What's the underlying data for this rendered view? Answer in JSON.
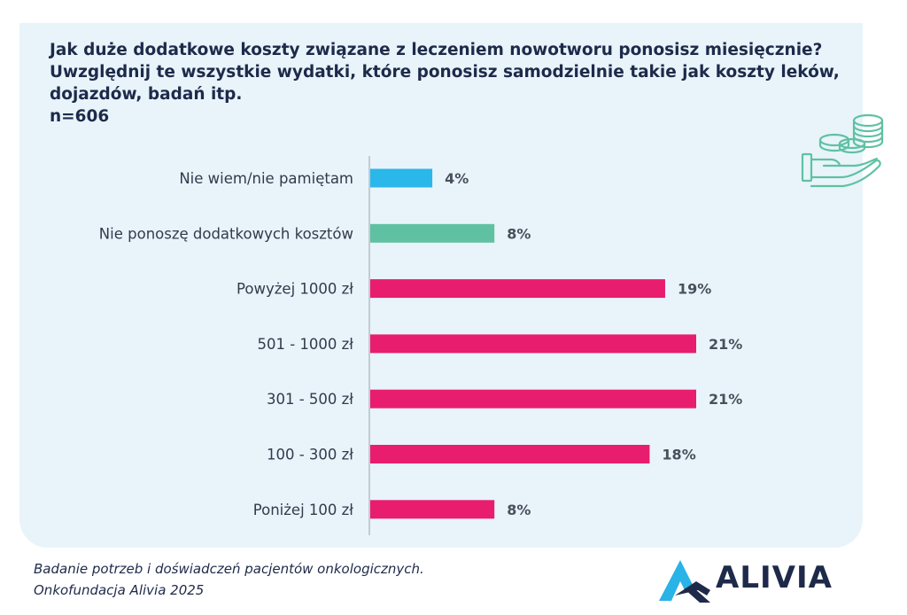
{
  "header": {
    "question_line1": "Jak duże dodatkowe koszty związane z leczeniem nowotworu ponosisz miesięcznie?",
    "question_line2": "Uwzględnij te wszystkie wydatki, które ponosisz samodzielnie takie jak koszty leków,",
    "question_line3": "dojazdów, badań itp.",
    "sample_size": "n=606"
  },
  "chart_data": {
    "type": "bar",
    "orientation": "horizontal",
    "categories": [
      "Nie wiem/nie pamiętam",
      "Nie ponoszę dodatkowych kosztów",
      "Powyżej 1000 zł",
      "501 - 1000 zł",
      "301 - 500 zł",
      "100 - 300 zł",
      "Poniżej 100 zł"
    ],
    "values": [
      4,
      8,
      19,
      21,
      21,
      18,
      8
    ],
    "value_labels": [
      "4%",
      "8%",
      "19%",
      "21%",
      "21%",
      "18%",
      "8%"
    ],
    "unit": "%",
    "bar_colors": [
      "#2ab7ea",
      "#5fc1a2",
      "#e81d6e",
      "#e81d6e",
      "#e81d6e",
      "#e81d6e",
      "#e81d6e"
    ],
    "xlim": [
      0,
      21
    ],
    "grid": false,
    "legend": "none"
  },
  "icons": {
    "money": "hand-with-coins-icon",
    "logo": "alivia-logo-icon"
  },
  "colors": {
    "panel_background": "#e8f4fa",
    "title_text": "#1e2a4a",
    "accent_teal": "#5fc1a2",
    "accent_blue": "#2ab7ea",
    "accent_pink": "#e81d6e"
  },
  "footer": {
    "source_line1": "Badanie potrzeb i doświadczeń pacjentów onkologicznych.",
    "source_line2": "Onkofundacja Alivia 2025",
    "logo_text": "ALIVIA"
  }
}
